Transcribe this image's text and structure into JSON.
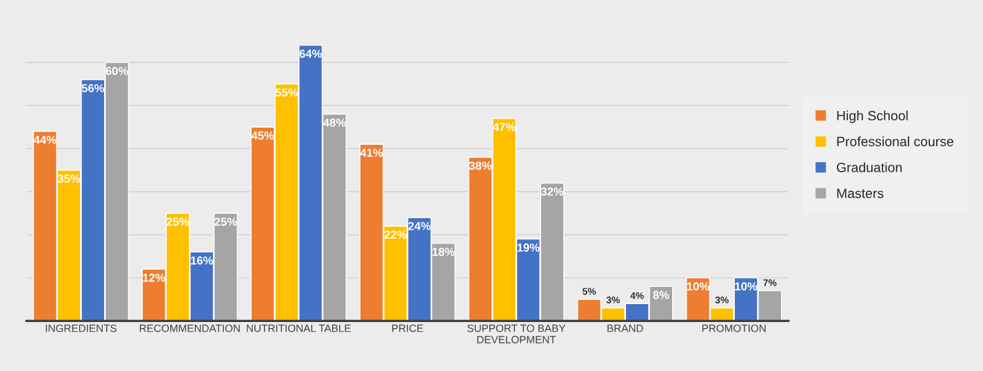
{
  "chart_data": {
    "type": "bar",
    "categories": [
      "INGREDIENTS",
      "RECOMMENDATION",
      "NUTRITIONAL TABLE",
      "PRICE",
      "SUPPORT TO BABY DEVELOPMENT",
      "BRAND",
      "PROMOTION"
    ],
    "series": [
      {
        "name": "High School",
        "color": "#ed7d31",
        "values": [
          44,
          12,
          45,
          41,
          38,
          5,
          10
        ],
        "value_labels": [
          "44%",
          "12%",
          "45%",
          "41%",
          "38%",
          "5%",
          "10%"
        ]
      },
      {
        "name": "Professional course",
        "color": "#ffc000",
        "values": [
          35,
          25,
          55,
          22,
          47,
          3,
          3
        ],
        "value_labels": [
          "35%",
          "25%",
          "55%",
          "22%",
          "47%",
          "3%",
          "3%"
        ]
      },
      {
        "name": "Graduation",
        "color": "#4472c4",
        "values": [
          56,
          16,
          64,
          24,
          19,
          4,
          10
        ],
        "value_labels": [
          "56%",
          "16%",
          "64%",
          "24%",
          "19%",
          "4%",
          "10%"
        ]
      },
      {
        "name": "Masters",
        "color": "#a5a5a5",
        "values": [
          60,
          25,
          48,
          18,
          32,
          8,
          7
        ],
        "value_labels": [
          "60%",
          "25%",
          "48%",
          "18%",
          "32%",
          "8%",
          "7%"
        ]
      }
    ],
    "grid": "y",
    "legend": "right"
  }
}
